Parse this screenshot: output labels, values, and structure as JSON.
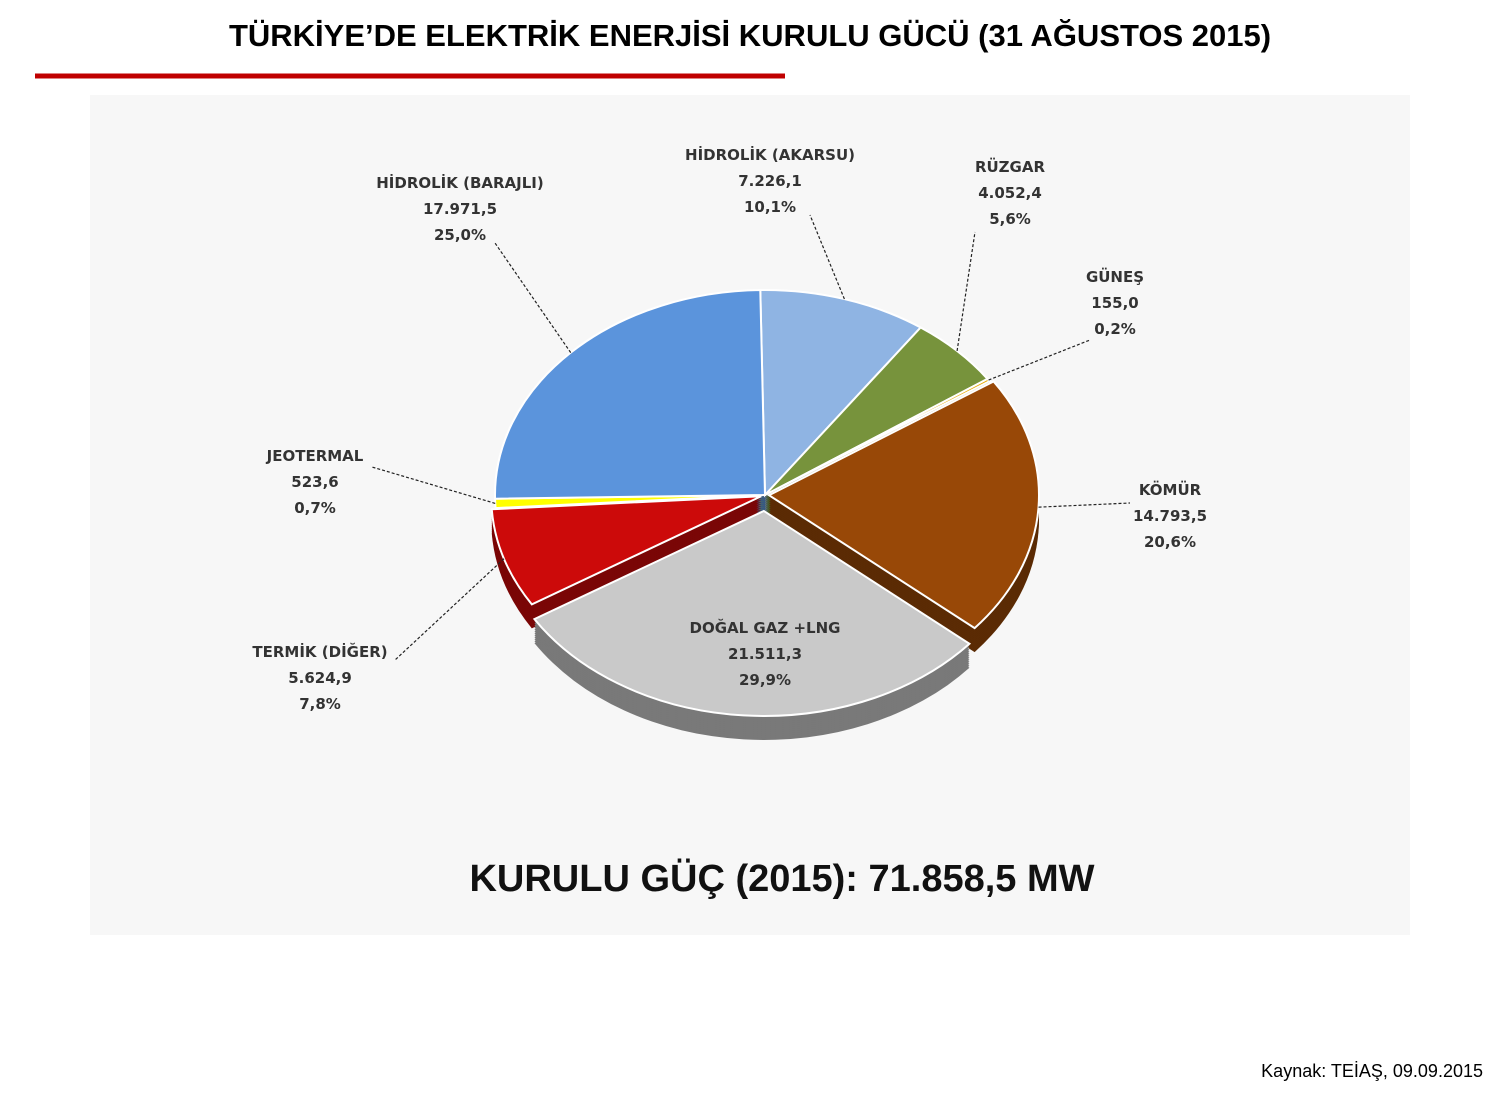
{
  "chart_data": {
    "type": "pie",
    "title": "TÜRKİYE’DE ELEKTRİK ENERJİSİ KURULU GÜCÜ (31 AĞUSTOS 2015)",
    "annotation": "KURULU GÜÇ (2015): 71.858,5 MW",
    "source": "Kaynak: TEİAŞ, 09.09.2015",
    "categories": [
      "HİDROLİK (AKARSU)",
      "RÜZGAR",
      "GÜNEŞ",
      "KÖMÜR",
      "DOĞAL GAZ +LNG",
      "TERMİK (DİĞER)",
      "JEOTERMAL",
      "HİDROLİK (BARAJLI)"
    ],
    "values": [
      7226.1,
      4052.4,
      155.0,
      14793.5,
      21511.3,
      5624.9,
      523.6,
      17971.5
    ],
    "value_labels": [
      "7.226,1",
      "4.052,4",
      "155,0",
      "14.793,5",
      "21.511,3",
      "5.624,9",
      "523,6",
      "17.971,5"
    ],
    "percentages": [
      10.1,
      5.6,
      0.2,
      20.6,
      29.9,
      7.8,
      0.7,
      25.0
    ],
    "percentage_labels": [
      "10,1%",
      "5,6%",
      "0,2%",
      "20,6%",
      "29,9%",
      "7,8%",
      "0,7%",
      "25,0%"
    ],
    "colors": [
      "#8fb4e3",
      "#77933c",
      "#e6a800",
      "#984807",
      "#c9c9c9",
      "#cc0a0a",
      "#ffff00",
      "#5b94dc"
    ]
  }
}
